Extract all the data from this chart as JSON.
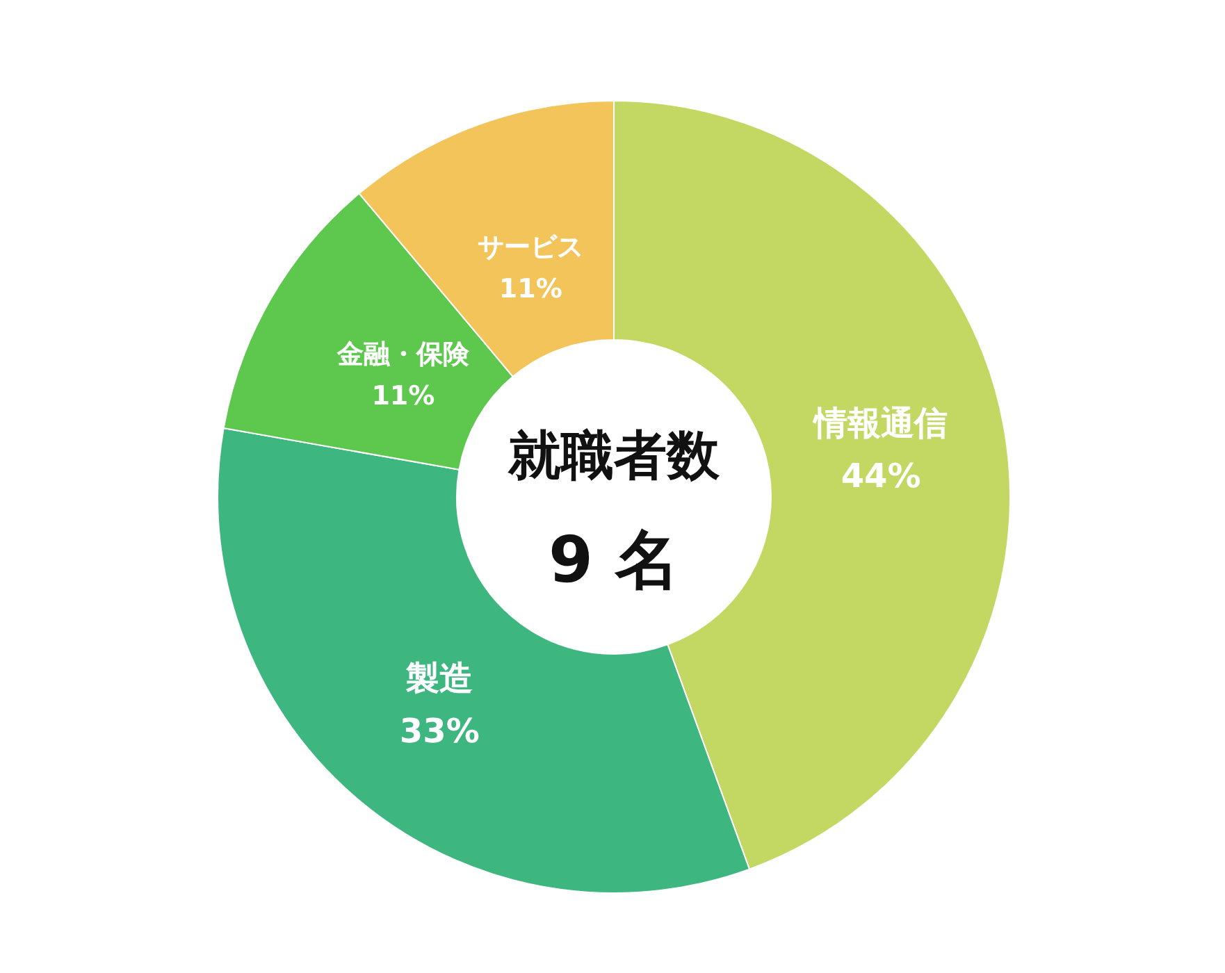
{
  "chart_data": {
    "type": "donut",
    "categories": [
      "情報通信",
      "製造",
      "金融・保険",
      "サービス"
    ],
    "values": [
      44,
      33,
      11,
      11
    ],
    "colors": [
      "#c2d862",
      "#3db680",
      "#5ec84e",
      "#f2c45a"
    ],
    "value_labels": [
      "44%",
      "33%",
      "11%",
      "11%"
    ],
    "annotations": [
      "就職者数",
      "9 名"
    ]
  }
}
